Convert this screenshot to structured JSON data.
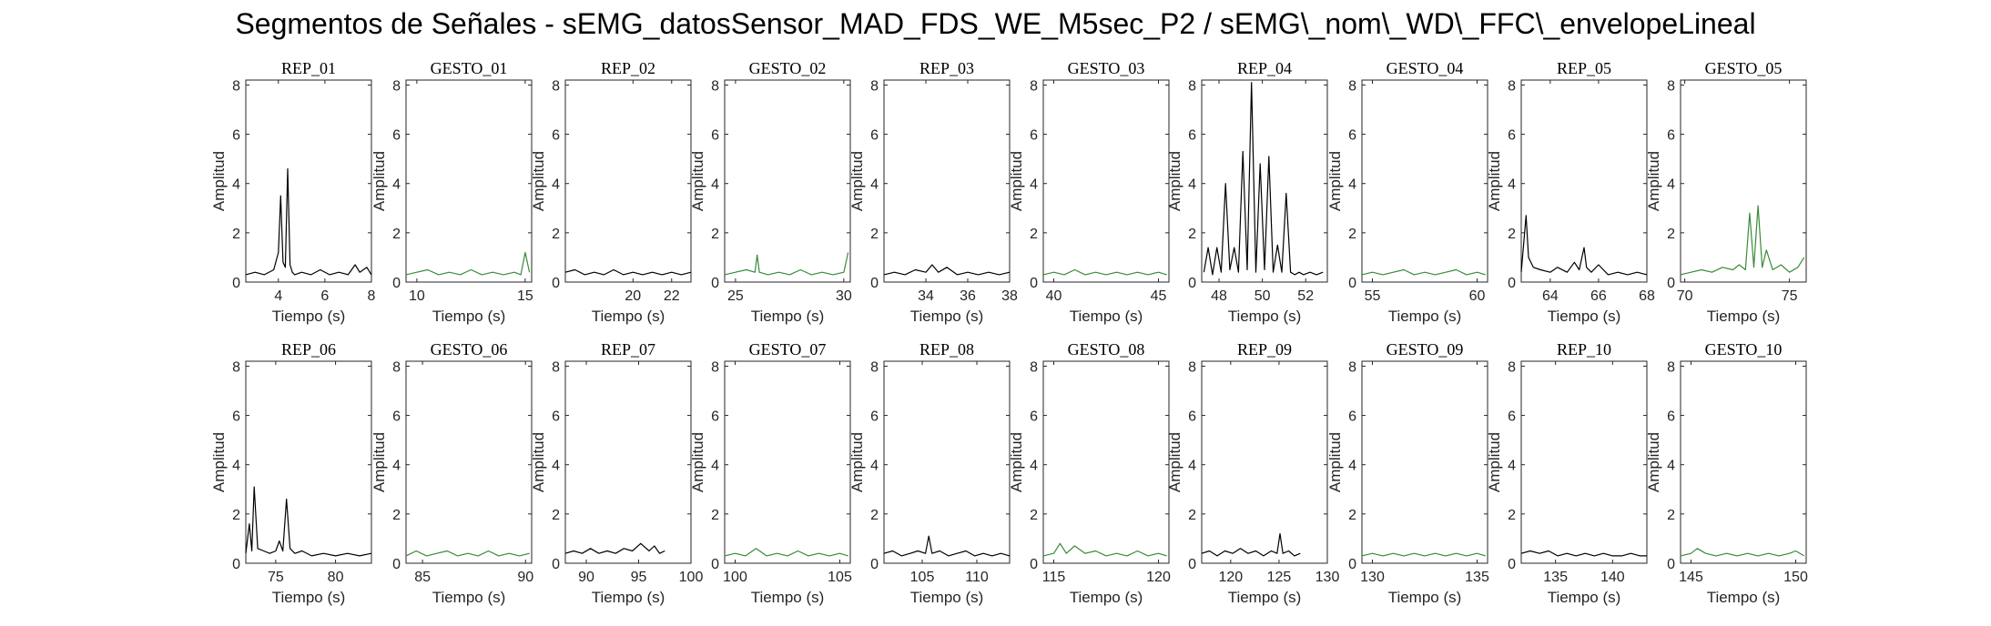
{
  "suptitle": "Segmentos de Señales - sEMG_datosSensor_MAD_FDS_WE_M5sec_P2 / sEMG\\_nom\\_WD\\_FFC\\_envelopeLineal",
  "colors": {
    "rep": "#000000",
    "gesto": "#3a8a3a",
    "axis": "#262626"
  },
  "chart_data": [
    {
      "type": "line",
      "title": "REP_01",
      "xlabel": "Tiempo (s)",
      "ylabel": "Amplitud",
      "xlim": [
        2.6,
        8.0
      ],
      "ylim": [
        0,
        8.2
      ],
      "xticks": [
        4,
        6,
        8
      ],
      "yticks": [
        0,
        2,
        4,
        6,
        8
      ],
      "color": "rep",
      "x": [
        2.6,
        3.0,
        3.4,
        3.8,
        4.0,
        4.1,
        4.2,
        4.3,
        4.4,
        4.5,
        4.6,
        4.7,
        5.0,
        5.4,
        5.8,
        6.2,
        6.6,
        7.0,
        7.3,
        7.5,
        7.8,
        8.0
      ],
      "y": [
        0.3,
        0.4,
        0.3,
        0.5,
        1.2,
        3.5,
        0.8,
        0.6,
        4.6,
        0.7,
        0.4,
        0.3,
        0.4,
        0.3,
        0.5,
        0.3,
        0.4,
        0.3,
        0.7,
        0.4,
        0.6,
        0.3
      ]
    },
    {
      "type": "line",
      "title": "GESTO_01",
      "xlabel": "Tiempo (s)",
      "ylabel": "Amplitud",
      "xlim": [
        9.5,
        15.3
      ],
      "ylim": [
        0,
        8.2
      ],
      "xticks": [
        10,
        15
      ],
      "yticks": [
        0,
        2,
        4,
        6,
        8
      ],
      "color": "gesto",
      "x": [
        9.5,
        10.0,
        10.5,
        11.0,
        11.5,
        12.0,
        12.5,
        13.0,
        13.5,
        14.0,
        14.5,
        14.8,
        15.0,
        15.2
      ],
      "y": [
        0.3,
        0.4,
        0.5,
        0.3,
        0.4,
        0.3,
        0.5,
        0.3,
        0.4,
        0.3,
        0.4,
        0.3,
        1.2,
        0.4
      ]
    },
    {
      "type": "line",
      "title": "REP_02",
      "xlabel": "Tiempo (s)",
      "ylabel": "Amplitud",
      "xlim": [
        16.5,
        23.0
      ],
      "ylim": [
        0,
        8.2
      ],
      "xticks": [
        20,
        22
      ],
      "yticks": [
        0,
        2,
        4,
        6,
        8
      ],
      "color": "rep",
      "x": [
        16.5,
        17.0,
        17.5,
        18.0,
        18.5,
        19.0,
        19.5,
        20.0,
        20.5,
        21.0,
        21.5,
        22.0,
        22.5,
        23.0
      ],
      "y": [
        0.4,
        0.5,
        0.3,
        0.4,
        0.3,
        0.5,
        0.3,
        0.4,
        0.3,
        0.4,
        0.3,
        0.4,
        0.3,
        0.4
      ]
    },
    {
      "type": "line",
      "title": "GESTO_02",
      "xlabel": "Tiempo (s)",
      "ylabel": "Amplitud",
      "xlim": [
        24.5,
        30.3
      ],
      "ylim": [
        0,
        8.2
      ],
      "xticks": [
        25,
        30
      ],
      "yticks": [
        0,
        2,
        4,
        6,
        8
      ],
      "color": "gesto",
      "x": [
        24.5,
        25.0,
        25.5,
        25.9,
        26.0,
        26.1,
        26.5,
        27.0,
        27.5,
        28.0,
        28.5,
        29.0,
        29.5,
        30.0,
        30.2
      ],
      "y": [
        0.3,
        0.4,
        0.5,
        0.4,
        1.1,
        0.4,
        0.3,
        0.4,
        0.3,
        0.5,
        0.3,
        0.4,
        0.3,
        0.4,
        1.2
      ]
    },
    {
      "type": "line",
      "title": "REP_03",
      "xlabel": "Tiempo (s)",
      "ylabel": "Amplitud",
      "xlim": [
        32.0,
        38.0
      ],
      "ylim": [
        0,
        8.2
      ],
      "xticks": [
        34,
        36,
        38
      ],
      "yticks": [
        0,
        2,
        4,
        6,
        8
      ],
      "color": "rep",
      "x": [
        32.0,
        32.5,
        33.0,
        33.5,
        34.0,
        34.3,
        34.6,
        35.0,
        35.5,
        36.0,
        36.5,
        37.0,
        37.5,
        38.0
      ],
      "y": [
        0.3,
        0.4,
        0.3,
        0.5,
        0.4,
        0.7,
        0.4,
        0.6,
        0.3,
        0.4,
        0.3,
        0.4,
        0.3,
        0.4
      ]
    },
    {
      "type": "line",
      "title": "GESTO_03",
      "xlabel": "Tiempo (s)",
      "ylabel": "Amplitud",
      "xlim": [
        39.5,
        45.5
      ],
      "ylim": [
        0,
        8.2
      ],
      "xticks": [
        40,
        45
      ],
      "yticks": [
        0,
        2,
        4,
        6,
        8
      ],
      "color": "gesto",
      "x": [
        39.5,
        40.0,
        40.5,
        41.0,
        41.5,
        42.0,
        42.5,
        43.0,
        43.5,
        44.0,
        44.5,
        45.0,
        45.4
      ],
      "y": [
        0.3,
        0.4,
        0.3,
        0.5,
        0.3,
        0.4,
        0.3,
        0.4,
        0.3,
        0.4,
        0.3,
        0.4,
        0.3
      ]
    },
    {
      "type": "line",
      "title": "REP_04",
      "xlabel": "Tiempo (s)",
      "ylabel": "Amplitud",
      "xlim": [
        47.2,
        53.0
      ],
      "ylim": [
        0,
        8.2
      ],
      "xticks": [
        48,
        50,
        52
      ],
      "yticks": [
        0,
        2,
        4,
        6,
        8
      ],
      "color": "rep",
      "x": [
        47.3,
        47.5,
        47.7,
        47.9,
        48.1,
        48.3,
        48.5,
        48.7,
        48.9,
        49.1,
        49.3,
        49.5,
        49.7,
        49.9,
        50.1,
        50.3,
        50.5,
        50.7,
        50.9,
        51.1,
        51.3,
        51.5,
        51.7,
        51.9,
        52.2,
        52.5,
        52.8
      ],
      "y": [
        0.4,
        1.4,
        0.3,
        1.4,
        0.4,
        4.0,
        0.5,
        1.4,
        0.4,
        5.3,
        0.5,
        8.1,
        0.4,
        4.8,
        0.5,
        5.1,
        0.4,
        1.5,
        0.4,
        3.6,
        0.4,
        0.3,
        0.4,
        0.3,
        0.4,
        0.3,
        0.4
      ]
    },
    {
      "type": "line",
      "title": "GESTO_04",
      "xlabel": "Tiempo (s)",
      "ylabel": "Amplitud",
      "xlim": [
        54.5,
        60.5
      ],
      "ylim": [
        0,
        8.2
      ],
      "xticks": [
        55,
        60
      ],
      "yticks": [
        0,
        2,
        4,
        6,
        8
      ],
      "color": "gesto",
      "x": [
        54.5,
        55.0,
        55.5,
        56.0,
        56.5,
        57.0,
        57.5,
        58.0,
        58.5,
        59.0,
        59.5,
        60.0,
        60.4
      ],
      "y": [
        0.3,
        0.4,
        0.3,
        0.4,
        0.5,
        0.3,
        0.4,
        0.3,
        0.4,
        0.5,
        0.3,
        0.4,
        0.3
      ]
    },
    {
      "type": "line",
      "title": "REP_05",
      "xlabel": "Tiempo (s)",
      "ylabel": "Amplitud",
      "xlim": [
        62.8,
        68.0
      ],
      "ylim": [
        0,
        8.2
      ],
      "xticks": [
        64,
        66,
        68
      ],
      "yticks": [
        0,
        2,
        4,
        6,
        8
      ],
      "color": "rep",
      "x": [
        62.8,
        63.0,
        63.1,
        63.3,
        63.6,
        64.0,
        64.3,
        64.7,
        65.0,
        65.2,
        65.4,
        65.5,
        65.7,
        66.0,
        66.4,
        66.8,
        67.2,
        67.6,
        68.0
      ],
      "y": [
        0.4,
        2.7,
        1.0,
        0.6,
        0.5,
        0.4,
        0.6,
        0.4,
        0.8,
        0.5,
        1.4,
        0.6,
        0.4,
        0.7,
        0.3,
        0.4,
        0.3,
        0.4,
        0.3
      ]
    },
    {
      "type": "line",
      "title": "GESTO_05",
      "xlabel": "Tiempo (s)",
      "ylabel": "Amplitud",
      "xlim": [
        69.8,
        75.8
      ],
      "ylim": [
        0,
        8.2
      ],
      "xticks": [
        70,
        75
      ],
      "yticks": [
        0,
        2,
        4,
        6,
        8
      ],
      "color": "gesto",
      "x": [
        69.8,
        70.3,
        70.8,
        71.3,
        71.8,
        72.3,
        72.6,
        72.9,
        73.1,
        73.3,
        73.5,
        73.7,
        73.9,
        74.2,
        74.6,
        75.0,
        75.4,
        75.7
      ],
      "y": [
        0.3,
        0.4,
        0.5,
        0.4,
        0.6,
        0.5,
        0.7,
        0.5,
        2.8,
        0.6,
        3.1,
        0.6,
        1.3,
        0.5,
        0.7,
        0.4,
        0.6,
        1.0
      ]
    },
    {
      "type": "line",
      "title": "REP_06",
      "xlabel": "Tiempo (s)",
      "ylabel": "Amplitud",
      "xlim": [
        72.5,
        83.0
      ],
      "ylim": [
        0,
        8.2
      ],
      "xticks": [
        75,
        80
      ],
      "yticks": [
        0,
        2,
        4,
        6,
        8
      ],
      "color": "rep",
      "x": [
        72.5,
        72.8,
        73.0,
        73.2,
        73.5,
        74.0,
        74.5,
        75.0,
        75.3,
        75.6,
        75.9,
        76.2,
        76.6,
        77.2,
        78.0,
        79.0,
        80.0,
        81.0,
        82.0,
        83.0
      ],
      "y": [
        0.4,
        1.6,
        0.5,
        3.1,
        0.6,
        0.5,
        0.4,
        0.5,
        0.9,
        0.5,
        2.6,
        0.6,
        0.4,
        0.5,
        0.3,
        0.4,
        0.3,
        0.4,
        0.3,
        0.4
      ]
    },
    {
      "type": "line",
      "title": "GESTO_06",
      "xlabel": "Tiempo (s)",
      "ylabel": "Amplitud",
      "xlim": [
        84.2,
        90.3
      ],
      "ylim": [
        0,
        8.2
      ],
      "xticks": [
        85,
        90
      ],
      "yticks": [
        0,
        2,
        4,
        6,
        8
      ],
      "color": "gesto",
      "x": [
        84.2,
        84.7,
        85.2,
        85.7,
        86.2,
        86.7,
        87.2,
        87.7,
        88.2,
        88.7,
        89.2,
        89.7,
        90.2
      ],
      "y": [
        0.3,
        0.5,
        0.3,
        0.4,
        0.5,
        0.3,
        0.4,
        0.3,
        0.5,
        0.3,
        0.4,
        0.3,
        0.4
      ]
    },
    {
      "type": "line",
      "title": "REP_07",
      "xlabel": "Tiempo (s)",
      "ylabel": "Amplitud",
      "xlim": [
        88.0,
        100.0
      ],
      "ylim": [
        0,
        8.2
      ],
      "xticks": [
        90,
        95,
        100
      ],
      "yticks": [
        0,
        2,
        4,
        6,
        8
      ],
      "color": "rep",
      "x": [
        88.0,
        88.8,
        89.6,
        90.4,
        91.2,
        92.0,
        92.8,
        93.6,
        94.4,
        95.2,
        96.0,
        96.5,
        97.0,
        97.5
      ],
      "y": [
        0.4,
        0.5,
        0.4,
        0.6,
        0.4,
        0.5,
        0.4,
        0.6,
        0.5,
        0.8,
        0.5,
        0.7,
        0.4,
        0.5
      ]
    },
    {
      "type": "line",
      "title": "GESTO_07",
      "xlabel": "Tiempo (s)",
      "ylabel": "Amplitud",
      "xlim": [
        99.5,
        105.5
      ],
      "ylim": [
        0,
        8.2
      ],
      "xticks": [
        100,
        105
      ],
      "yticks": [
        0,
        2,
        4,
        6,
        8
      ],
      "color": "gesto",
      "x": [
        99.5,
        100.0,
        100.5,
        101.0,
        101.5,
        102.0,
        102.5,
        103.0,
        103.5,
        104.0,
        104.5,
        105.0,
        105.4
      ],
      "y": [
        0.3,
        0.4,
        0.3,
        0.6,
        0.3,
        0.4,
        0.3,
        0.5,
        0.3,
        0.4,
        0.3,
        0.4,
        0.3
      ]
    },
    {
      "type": "line",
      "title": "REP_08",
      "xlabel": "Tiempo (s)",
      "ylabel": "Amplitud",
      "xlim": [
        101.5,
        113.0
      ],
      "ylim": [
        0,
        8.2
      ],
      "xticks": [
        105,
        110
      ],
      "yticks": [
        0,
        2,
        4,
        6,
        8
      ],
      "color": "rep",
      "x": [
        101.5,
        102.3,
        103.1,
        103.9,
        104.6,
        105.3,
        105.6,
        105.9,
        106.6,
        107.4,
        108.2,
        109.0,
        109.8,
        110.6,
        111.4,
        112.2,
        113.0
      ],
      "y": [
        0.4,
        0.5,
        0.3,
        0.4,
        0.5,
        0.4,
        1.1,
        0.4,
        0.5,
        0.3,
        0.4,
        0.5,
        0.3,
        0.4,
        0.3,
        0.4,
        0.3
      ]
    },
    {
      "type": "line",
      "title": "GESTO_08",
      "xlabel": "Tiempo (s)",
      "ylabel": "Amplitud",
      "xlim": [
        114.5,
        120.5
      ],
      "ylim": [
        0,
        8.2
      ],
      "xticks": [
        115,
        120
      ],
      "yticks": [
        0,
        2,
        4,
        6,
        8
      ],
      "color": "gesto",
      "x": [
        114.5,
        115.0,
        115.3,
        115.6,
        116.0,
        116.5,
        117.0,
        117.5,
        118.0,
        118.5,
        119.0,
        119.5,
        120.0,
        120.4
      ],
      "y": [
        0.3,
        0.4,
        0.8,
        0.4,
        0.7,
        0.4,
        0.5,
        0.3,
        0.4,
        0.3,
        0.5,
        0.3,
        0.4,
        0.3
      ]
    },
    {
      "type": "line",
      "title": "REP_09",
      "xlabel": "Tiempo (s)",
      "ylabel": "Amplitud",
      "xlim": [
        117.0,
        130.0
      ],
      "ylim": [
        0,
        8.2
      ],
      "xticks": [
        120,
        125,
        130
      ],
      "yticks": [
        0,
        2,
        4,
        6,
        8
      ],
      "color": "rep",
      "x": [
        117.0,
        117.8,
        118.6,
        119.4,
        120.2,
        121.0,
        121.8,
        122.6,
        123.4,
        124.2,
        124.8,
        125.1,
        125.4,
        126.0,
        126.6,
        127.2
      ],
      "y": [
        0.4,
        0.5,
        0.3,
        0.5,
        0.4,
        0.6,
        0.4,
        0.5,
        0.3,
        0.5,
        0.4,
        1.2,
        0.4,
        0.5,
        0.3,
        0.4
      ]
    },
    {
      "type": "line",
      "title": "GESTO_09",
      "xlabel": "Tiempo (s)",
      "ylabel": "Amplitud",
      "xlim": [
        129.5,
        135.5
      ],
      "ylim": [
        0,
        8.2
      ],
      "xticks": [
        130,
        135
      ],
      "yticks": [
        0,
        2,
        4,
        6,
        8
      ],
      "color": "gesto",
      "x": [
        129.5,
        130.0,
        130.5,
        131.0,
        131.5,
        132.0,
        132.5,
        133.0,
        133.5,
        134.0,
        134.5,
        135.0,
        135.4
      ],
      "y": [
        0.3,
        0.4,
        0.3,
        0.4,
        0.3,
        0.4,
        0.3,
        0.4,
        0.3,
        0.4,
        0.3,
        0.4,
        0.3
      ]
    },
    {
      "type": "line",
      "title": "REP_10",
      "xlabel": "Tiempo (s)",
      "ylabel": "Amplitud",
      "xlim": [
        132.0,
        143.0
      ],
      "ylim": [
        0,
        8.2
      ],
      "xticks": [
        135,
        140
      ],
      "yticks": [
        0,
        2,
        4,
        6,
        8
      ],
      "color": "rep",
      "x": [
        132.0,
        132.8,
        133.6,
        134.4,
        135.2,
        136.0,
        136.8,
        137.6,
        138.4,
        139.2,
        140.0,
        140.8,
        141.6,
        142.4,
        143.0
      ],
      "y": [
        0.4,
        0.5,
        0.4,
        0.5,
        0.3,
        0.4,
        0.3,
        0.4,
        0.3,
        0.4,
        0.3,
        0.3,
        0.4,
        0.3,
        0.3
      ]
    },
    {
      "type": "line",
      "title": "GESTO_10",
      "xlabel": "Tiempo (s)",
      "ylabel": "Amplitud",
      "xlim": [
        144.5,
        150.5
      ],
      "ylim": [
        0,
        8.2
      ],
      "xticks": [
        145,
        150
      ],
      "yticks": [
        0,
        2,
        4,
        6,
        8
      ],
      "color": "gesto",
      "x": [
        144.5,
        145.0,
        145.3,
        145.7,
        146.2,
        146.7,
        147.2,
        147.7,
        148.2,
        148.7,
        149.2,
        149.7,
        150.0,
        150.4
      ],
      "y": [
        0.3,
        0.4,
        0.6,
        0.4,
        0.3,
        0.4,
        0.3,
        0.4,
        0.3,
        0.4,
        0.3,
        0.4,
        0.5,
        0.3
      ]
    }
  ]
}
